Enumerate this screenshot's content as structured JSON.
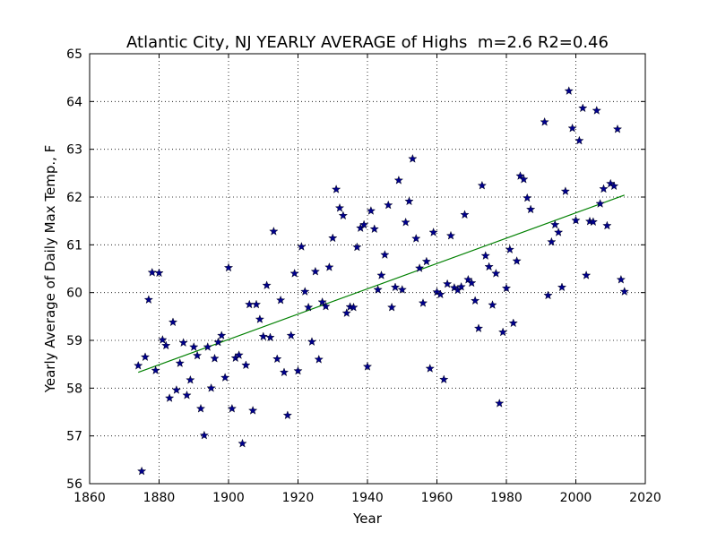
{
  "chart_data": {
    "type": "scatter",
    "title": "Atlantic City, NJ YEARLY AVERAGE of Highs  m=2.6 R2=0.46",
    "xlabel": "Year",
    "ylabel": "Yearly Average of Daily Max Temp., F",
    "xlim": [
      1860,
      2020
    ],
    "ylim": [
      56,
      65
    ],
    "x_ticks": [
      1860,
      1880,
      1900,
      1920,
      1940,
      1960,
      1980,
      2000,
      2020
    ],
    "y_ticks": [
      56,
      57,
      58,
      59,
      60,
      61,
      62,
      63,
      64,
      65
    ],
    "grid": "dotted",
    "colors": {
      "points": "#00008b",
      "trend": "#008000"
    },
    "trendline": {
      "x": [
        1874,
        2014
      ],
      "y": [
        58.33,
        62.04
      ]
    },
    "points": [
      [
        1874,
        58.47
      ],
      [
        1875,
        56.26
      ],
      [
        1876,
        58.65
      ],
      [
        1877,
        59.85
      ],
      [
        1878,
        60.42
      ],
      [
        1879,
        58.37
      ],
      [
        1880,
        60.41
      ],
      [
        1881,
        59.01
      ],
      [
        1882,
        58.89
      ],
      [
        1883,
        57.79
      ],
      [
        1884,
        59.38
      ],
      [
        1885,
        57.96
      ],
      [
        1886,
        58.52
      ],
      [
        1887,
        58.95
      ],
      [
        1888,
        57.85
      ],
      [
        1889,
        58.17
      ],
      [
        1890,
        58.86
      ],
      [
        1891,
        58.68
      ],
      [
        1892,
        57.57
      ],
      [
        1893,
        57.01
      ],
      [
        1894,
        58.86
      ],
      [
        1895,
        58.0
      ],
      [
        1896,
        58.62
      ],
      [
        1897,
        58.96
      ],
      [
        1898,
        59.1
      ],
      [
        1899,
        58.22
      ],
      [
        1900,
        60.52
      ],
      [
        1901,
        57.57
      ],
      [
        1902,
        58.63
      ],
      [
        1903,
        58.69
      ],
      [
        1904,
        56.84
      ],
      [
        1905,
        58.48
      ],
      [
        1906,
        59.75
      ],
      [
        1907,
        57.53
      ],
      [
        1908,
        59.75
      ],
      [
        1909,
        59.44
      ],
      [
        1910,
        59.08
      ],
      [
        1911,
        60.15
      ],
      [
        1912,
        59.06
      ],
      [
        1913,
        61.28
      ],
      [
        1914,
        58.61
      ],
      [
        1915,
        59.84
      ],
      [
        1916,
        58.33
      ],
      [
        1917,
        57.43
      ],
      [
        1918,
        59.1
      ],
      [
        1919,
        60.4
      ],
      [
        1920,
        58.36
      ],
      [
        1921,
        60.96
      ],
      [
        1922,
        60.02
      ],
      [
        1923,
        59.69
      ],
      [
        1924,
        58.97
      ],
      [
        1925,
        60.44
      ],
      [
        1926,
        58.6
      ],
      [
        1927,
        59.8
      ],
      [
        1928,
        59.71
      ],
      [
        1929,
        60.53
      ],
      [
        1930,
        61.14
      ],
      [
        1931,
        62.16
      ],
      [
        1932,
        61.77
      ],
      [
        1933,
        61.61
      ],
      [
        1934,
        59.57
      ],
      [
        1935,
        59.7
      ],
      [
        1936,
        59.69
      ],
      [
        1937,
        60.95
      ],
      [
        1938,
        61.35
      ],
      [
        1939,
        61.42
      ],
      [
        1940,
        58.45
      ],
      [
        1941,
        61.71
      ],
      [
        1942,
        61.33
      ],
      [
        1943,
        60.06
      ],
      [
        1944,
        60.36
      ],
      [
        1945,
        60.79
      ],
      [
        1946,
        61.83
      ],
      [
        1947,
        59.69
      ],
      [
        1948,
        60.11
      ],
      [
        1949,
        62.35
      ],
      [
        1950,
        60.06
      ],
      [
        1951,
        61.47
      ],
      [
        1952,
        61.91
      ],
      [
        1953,
        62.8
      ],
      [
        1954,
        61.13
      ],
      [
        1955,
        60.51
      ],
      [
        1956,
        59.78
      ],
      [
        1957,
        60.65
      ],
      [
        1958,
        58.41
      ],
      [
        1959,
        61.26
      ],
      [
        1960,
        60.01
      ],
      [
        1961,
        59.96
      ],
      [
        1962,
        58.18
      ],
      [
        1963,
        60.18
      ],
      [
        1964,
        61.19
      ],
      [
        1965,
        60.1
      ],
      [
        1966,
        60.05
      ],
      [
        1967,
        60.12
      ],
      [
        1968,
        61.63
      ],
      [
        1969,
        60.27
      ],
      [
        1970,
        60.2
      ],
      [
        1971,
        59.83
      ],
      [
        1972,
        59.25
      ],
      [
        1973,
        62.24
      ],
      [
        1974,
        60.77
      ],
      [
        1975,
        60.54
      ],
      [
        1976,
        59.74
      ],
      [
        1977,
        60.4
      ],
      [
        1978,
        57.68
      ],
      [
        1979,
        59.17
      ],
      [
        1980,
        60.09
      ],
      [
        1981,
        60.9
      ],
      [
        1982,
        59.36
      ],
      [
        1983,
        60.66
      ],
      [
        1984,
        62.44
      ],
      [
        1985,
        62.37
      ],
      [
        1986,
        61.98
      ],
      [
        1987,
        61.74
      ],
      [
        1991,
        63.57
      ],
      [
        1992,
        59.94
      ],
      [
        1993,
        61.06
      ],
      [
        1994,
        61.42
      ],
      [
        1995,
        61.26
      ],
      [
        1996,
        60.11
      ],
      [
        1997,
        62.12
      ],
      [
        1998,
        64.22
      ],
      [
        1999,
        63.44
      ],
      [
        2000,
        61.51
      ],
      [
        2001,
        63.18
      ],
      [
        2002,
        63.86
      ],
      [
        2003,
        60.36
      ],
      [
        2004,
        61.49
      ],
      [
        2005,
        61.48
      ],
      [
        2006,
        63.81
      ],
      [
        2007,
        61.86
      ],
      [
        2008,
        62.17
      ],
      [
        2009,
        61.4
      ],
      [
        2010,
        62.28
      ],
      [
        2011,
        62.23
      ],
      [
        2012,
        63.42
      ],
      [
        2013,
        60.27
      ],
      [
        2014,
        60.02
      ]
    ]
  }
}
